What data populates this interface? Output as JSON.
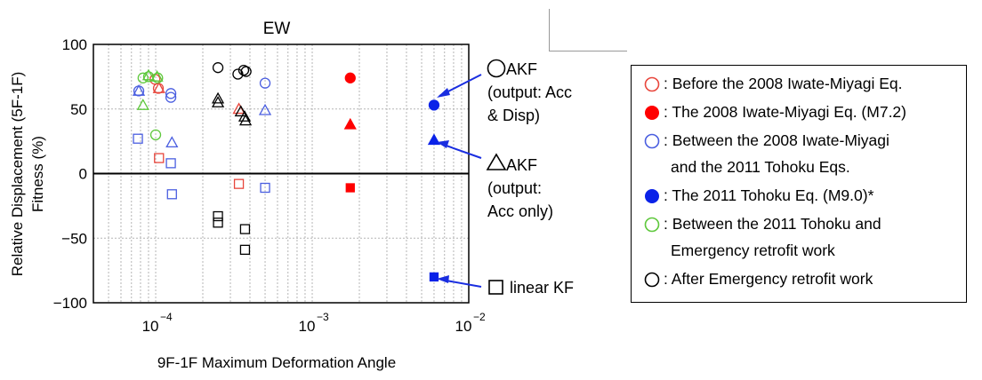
{
  "chart_data": {
    "type": "scatter",
    "title": "EW",
    "xlabel": "9F-1F Maximum Deformation Angle",
    "ylabel_lines": [
      "Relative Displacement (5F-1F)",
      "Fitness (%)"
    ],
    "xscale": "log",
    "xlim": [
      4e-05,
      0.01
    ],
    "ylim": [
      -100,
      100
    ],
    "x_ticks": [
      {
        "value": 0.0001,
        "base": "10",
        "exp": "−4"
      },
      {
        "value": 0.001,
        "base": "10",
        "exp": "−3"
      },
      {
        "value": 0.01,
        "base": "10",
        "exp": "−2"
      }
    ],
    "y_ticks": [
      100,
      50,
      0,
      -50,
      -100
    ],
    "y_tick_labels": [
      "100",
      "50",
      "0",
      "−50",
      "−100"
    ],
    "grid": true,
    "series": [
      {
        "period": "before",
        "color": "#e8463c",
        "filled": false,
        "marker": "circle",
        "points": [
          [
            9.9e-05,
            73
          ],
          [
            0.000104,
            66
          ]
        ]
      },
      {
        "period": "before",
        "color": "#e8463c",
        "filled": false,
        "marker": "triangle",
        "points": [
          [
            0.000105,
            66
          ],
          [
            0.00034,
            50
          ]
        ]
      },
      {
        "period": "before",
        "color": "#e8463c",
        "filled": false,
        "marker": "square",
        "points": [
          [
            0.000105,
            12
          ],
          [
            0.00034,
            -8
          ]
        ]
      },
      {
        "period": "iwate",
        "color": "#ff0000",
        "filled": true,
        "marker": "circle",
        "points": [
          [
            0.00175,
            74
          ]
        ]
      },
      {
        "period": "iwate",
        "color": "#ff0000",
        "filled": true,
        "marker": "triangle",
        "points": [
          [
            0.00175,
            38
          ]
        ]
      },
      {
        "period": "iwate",
        "color": "#ff0000",
        "filled": true,
        "marker": "square",
        "points": [
          [
            0.00175,
            -11
          ]
        ]
      },
      {
        "period": "between",
        "color": "#4a5ee0",
        "filled": false,
        "marker": "circle",
        "points": [
          [
            7.8e-05,
            64
          ],
          [
            0.000125,
            62
          ],
          [
            0.000125,
            59
          ],
          [
            0.0005,
            70
          ]
        ]
      },
      {
        "period": "between",
        "color": "#4a5ee0",
        "filled": false,
        "marker": "triangle",
        "points": [
          [
            7.8e-05,
            64
          ],
          [
            0.000127,
            24
          ],
          [
            0.0005,
            49
          ]
        ]
      },
      {
        "period": "between",
        "color": "#4a5ee0",
        "filled": false,
        "marker": "square",
        "points": [
          [
            7.7e-05,
            27
          ],
          [
            0.000125,
            8
          ],
          [
            0.000127,
            -16
          ],
          [
            0.0005,
            -11
          ]
        ]
      },
      {
        "period": "tohoku",
        "color": "#0a22e8",
        "filled": true,
        "marker": "circle",
        "points": [
          [
            0.006,
            53
          ]
        ]
      },
      {
        "period": "tohoku",
        "color": "#0a22e8",
        "filled": true,
        "marker": "triangle",
        "points": [
          [
            0.006,
            26
          ]
        ]
      },
      {
        "period": "tohoku",
        "color": "#0a22e8",
        "filled": true,
        "marker": "square",
        "points": [
          [
            0.006,
            -80
          ]
        ]
      },
      {
        "period": "after_tohoku",
        "color": "#5ec83c",
        "filled": false,
        "marker": "circle",
        "points": [
          [
            8.3e-05,
            74
          ],
          [
            9e-05,
            75
          ],
          [
            0.0001,
            30
          ],
          [
            0.000103,
            74
          ]
        ]
      },
      {
        "period": "after_tohoku",
        "color": "#5ec83c",
        "filled": false,
        "marker": "triangle",
        "points": [
          [
            8.3e-05,
            53
          ],
          [
            9e-05,
            76
          ],
          [
            0.000102,
            75
          ]
        ]
      },
      {
        "period": "after_retrofit",
        "color": "#000000",
        "filled": false,
        "marker": "circle",
        "points": [
          [
            0.00025,
            82
          ],
          [
            0.000335,
            77
          ],
          [
            0.000365,
            80
          ],
          [
            0.000378,
            79
          ]
        ]
      },
      {
        "period": "after_retrofit",
        "color": "#000000",
        "filled": false,
        "marker": "triangle",
        "points": [
          [
            0.00025,
            58
          ],
          [
            0.00025,
            55
          ],
          [
            0.00035,
            48
          ],
          [
            0.00037,
            44
          ],
          [
            0.000375,
            41
          ]
        ]
      },
      {
        "period": "after_retrofit",
        "color": "#000000",
        "filled": false,
        "marker": "square",
        "points": [
          [
            0.00025,
            -33
          ],
          [
            0.00025,
            -38
          ],
          [
            0.000372,
            -43
          ],
          [
            0.000372,
            -59
          ]
        ]
      }
    ],
    "annotations": [
      {
        "id": "akf-acc-disp",
        "lines": [
          "AKF",
          "(output: Acc",
          "& Disp)"
        ],
        "marker": "circle"
      },
      {
        "id": "akf-acc-only",
        "lines": [
          "AKF",
          "(output:",
          "Acc only)"
        ],
        "marker": "triangle"
      },
      {
        "id": "linear-kf",
        "lines": [
          "linear KF"
        ],
        "marker": "square"
      }
    ],
    "legend": {
      "placement": "right",
      "entries": [
        {
          "color": "#e8463c",
          "filled": false,
          "lines": [
            ": Before the 2008 Iwate-Miyagi Eq."
          ]
        },
        {
          "color": "#ff0000",
          "filled": true,
          "lines": [
            ": The 2008 Iwate-Miyagi Eq. (M7.2)"
          ]
        },
        {
          "color": "#4a5ee0",
          "filled": false,
          "lines": [
            ": Between the 2008 Iwate-Miyagi",
            "and the 2011 Tohoku Eqs."
          ]
        },
        {
          "color": "#0a22e8",
          "filled": true,
          "lines": [
            ": The 2011 Tohoku Eq. (M9.0)*"
          ]
        },
        {
          "color": "#5ec83c",
          "filled": false,
          "lines": [
            ": Between the 2011 Tohoku and",
            "Emergency retrofit work"
          ]
        },
        {
          "color": "#000000",
          "filled": false,
          "lines": [
            ": After Emergency retrofit work"
          ]
        }
      ]
    }
  }
}
